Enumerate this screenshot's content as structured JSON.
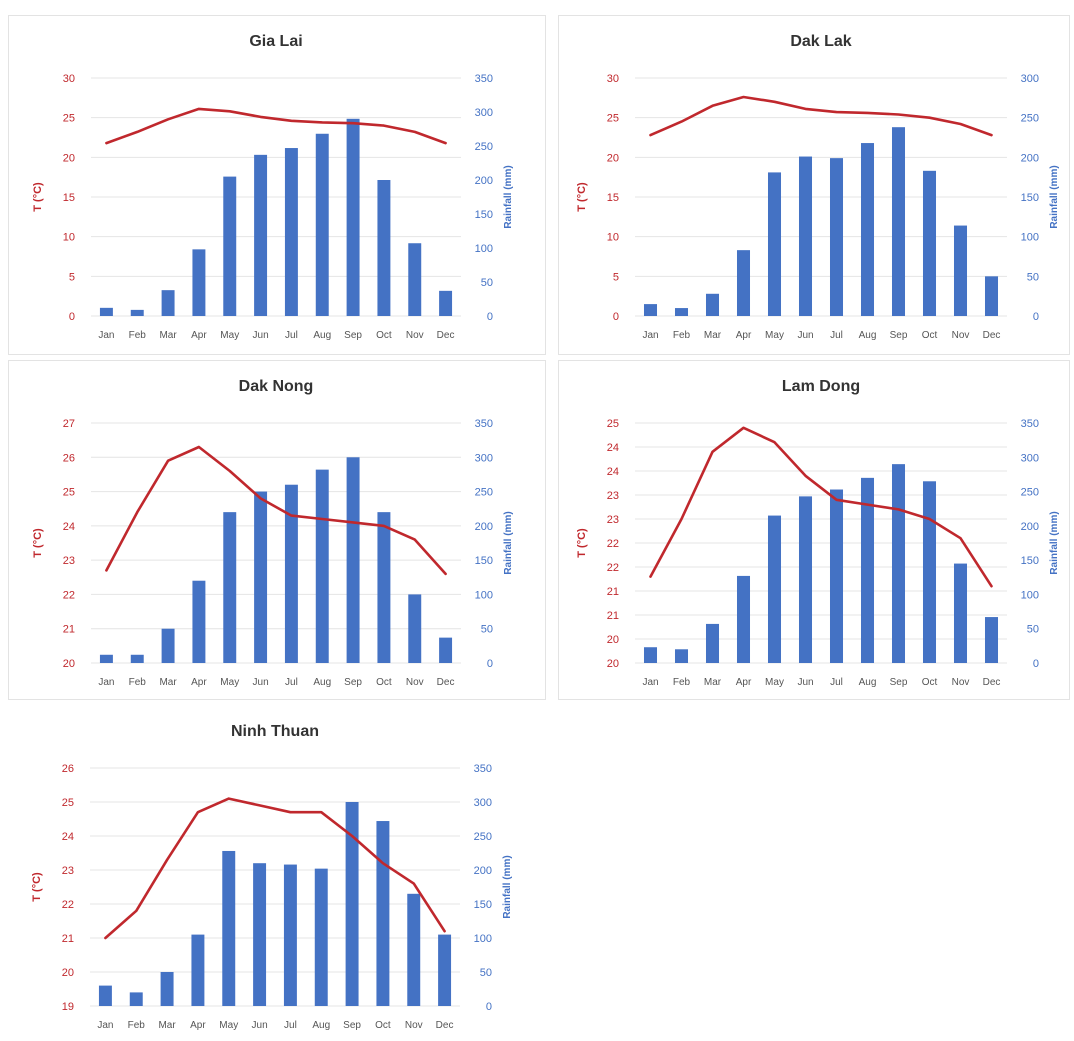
{
  "colors": {
    "temperature": "#c0282d",
    "rainfall": "#4472c4"
  },
  "chart_data": [
    {
      "type": "bar",
      "combo": "bar+line",
      "title": "Gia Lai",
      "categories": [
        "Jan",
        "Feb",
        "Mar",
        "Apr",
        "May",
        "Jun",
        "Jul",
        "Aug",
        "Sep",
        "Oct",
        "Nov",
        "Dec"
      ],
      "y_left_label": "T (°C)",
      "y_right_label": "Rainfall (mm)",
      "y_left_range": [
        0,
        30
      ],
      "y_left_ticks": [
        0,
        5,
        10,
        15,
        20,
        25,
        30
      ],
      "y_right_range": [
        0,
        350
      ],
      "y_right_ticks": [
        0,
        50,
        100,
        150,
        200,
        250,
        300,
        350
      ],
      "grid": true,
      "series": [
        {
          "kind": "bar",
          "axis": "right",
          "values": [
            12,
            9,
            38,
            98,
            205,
            237,
            247,
            268,
            290,
            200,
            107,
            37
          ]
        },
        {
          "kind": "line",
          "axis": "left",
          "values": [
            21.8,
            23.2,
            24.8,
            26.1,
            25.8,
            25.1,
            24.6,
            24.4,
            24.3,
            24.0,
            23.2,
            21.8
          ]
        }
      ]
    },
    {
      "type": "bar",
      "combo": "bar+line",
      "title": "Dak Lak",
      "categories": [
        "Jan",
        "Feb",
        "Mar",
        "Apr",
        "May",
        "Jun",
        "Jul",
        "Aug",
        "Sep",
        "Oct",
        "Nov",
        "Dec"
      ],
      "y_left_label": "T (°C)",
      "y_right_label": "Rainfall (mm)",
      "y_left_range": [
        0,
        30
      ],
      "y_left_ticks": [
        0,
        5,
        10,
        15,
        20,
        25,
        30
      ],
      "y_right_range": [
        0,
        300
      ],
      "y_right_ticks": [
        0,
        50,
        100,
        150,
        200,
        250,
        300
      ],
      "grid": true,
      "series": [
        {
          "kind": "bar",
          "axis": "right",
          "values": [
            15,
            10,
            28,
            83,
            181,
            201,
            199,
            218,
            238,
            183,
            114,
            50
          ]
        },
        {
          "kind": "line",
          "axis": "left",
          "values": [
            22.8,
            24.5,
            26.5,
            27.6,
            27.0,
            26.1,
            25.7,
            25.6,
            25.4,
            25.0,
            24.2,
            22.8
          ]
        }
      ]
    },
    {
      "type": "bar",
      "combo": "bar+line",
      "title": "Dak Nong",
      "categories": [
        "Jan",
        "Feb",
        "Mar",
        "Apr",
        "May",
        "Jun",
        "Jul",
        "Aug",
        "Sep",
        "Oct",
        "Nov",
        "Dec"
      ],
      "y_left_label": "T (°C)",
      "y_right_label": "Rainfall (mm)",
      "y_left_range": [
        20,
        27
      ],
      "y_left_ticks": [
        20,
        21,
        22,
        23,
        24,
        25,
        26,
        27
      ],
      "y_right_range": [
        0,
        350
      ],
      "y_right_ticks": [
        0,
        50,
        100,
        150,
        200,
        250,
        300,
        350
      ],
      "grid": true,
      "series": [
        {
          "kind": "bar",
          "axis": "right",
          "values": [
            12,
            12,
            50,
            120,
            220,
            250,
            260,
            282,
            300,
            220,
            100,
            37
          ]
        },
        {
          "kind": "line",
          "axis": "left",
          "values": [
            22.7,
            24.4,
            25.9,
            26.3,
            25.6,
            24.8,
            24.3,
            24.2,
            24.1,
            24.0,
            23.6,
            22.6
          ]
        }
      ]
    },
    {
      "type": "bar",
      "combo": "bar+line",
      "title": "Lam Dong",
      "categories": [
        "Jan",
        "Feb",
        "Mar",
        "Apr",
        "May",
        "Jun",
        "Jul",
        "Aug",
        "Sep",
        "Oct",
        "Nov",
        "Dec"
      ],
      "y_left_label": "T (°C)",
      "y_right_label": "Rainfall (mm)",
      "y_left_range": [
        20,
        25
      ],
      "y_left_ticks": [
        "20",
        "20",
        "21",
        "21",
        "22",
        "22",
        "23",
        "23",
        "24",
        "24",
        "25"
      ],
      "y_right_range": [
        0,
        350
      ],
      "y_right_ticks": [
        0,
        50,
        100,
        150,
        200,
        250,
        300,
        350
      ],
      "grid": true,
      "series": [
        {
          "kind": "bar",
          "axis": "right",
          "values": [
            23,
            20,
            57,
            127,
            215,
            243,
            253,
            270,
            290,
            265,
            145,
            67
          ]
        },
        {
          "kind": "line",
          "axis": "left",
          "values": [
            21.8,
            23.0,
            24.4,
            24.9,
            24.6,
            23.9,
            23.4,
            23.3,
            23.2,
            23.0,
            22.6,
            21.6
          ]
        }
      ]
    },
    {
      "type": "bar",
      "combo": "bar+line",
      "title": "Ninh Thuan",
      "categories": [
        "Jan",
        "Feb",
        "Mar",
        "Apr",
        "May",
        "Jun",
        "Jul",
        "Aug",
        "Sep",
        "Oct",
        "Nov",
        "Dec"
      ],
      "y_left_label": "T (°C)",
      "y_right_label": "Rainfall (mm)",
      "y_left_range": [
        19,
        26
      ],
      "y_left_ticks": [
        19,
        20,
        21,
        22,
        23,
        24,
        25,
        26
      ],
      "y_right_range": [
        0,
        350
      ],
      "y_right_ticks": [
        0,
        50,
        100,
        150,
        200,
        250,
        300,
        350
      ],
      "grid": true,
      "series": [
        {
          "kind": "bar",
          "axis": "right",
          "values": [
            30,
            20,
            50,
            105,
            228,
            210,
            208,
            202,
            300,
            272,
            165,
            105
          ]
        },
        {
          "kind": "line",
          "axis": "left",
          "values": [
            21.0,
            21.8,
            23.3,
            24.7,
            25.1,
            24.9,
            24.7,
            24.7,
            24.0,
            23.2,
            22.6,
            21.2
          ]
        }
      ]
    }
  ]
}
